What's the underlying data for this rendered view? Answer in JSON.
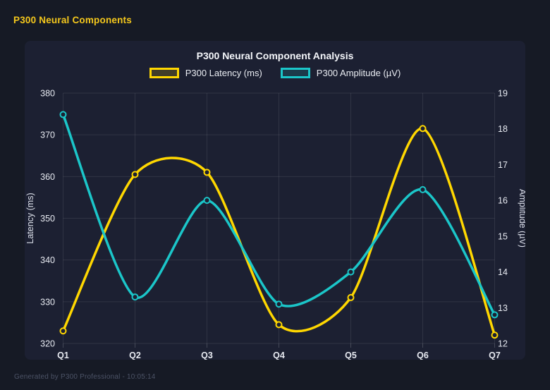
{
  "page": {
    "header_title": "P300 Neural Components",
    "footer": "Generated by P300 Professional - 10:05:14"
  },
  "colors": {
    "page_bg": "#161a25",
    "card_bg": "#1c2032",
    "grid": "rgba(255,255,255,0.09)",
    "tick_mark": "rgba(255,255,255,0.18)",
    "tick_text": "#e7eaf1",
    "axis_title_text": "#dde1eb",
    "title_text": "#f4f6fa",
    "footer_text": "#4c5366",
    "latency_yellow": "#ffd700",
    "amplitude_teal": "#1bc6c9"
  },
  "chart_data": {
    "type": "line",
    "title": "P300 Neural Component Analysis",
    "categories": [
      "Q1",
      "Q2",
      "Q3",
      "Q4",
      "Q5",
      "Q6",
      "Q7"
    ],
    "series": [
      {
        "name": "P300 Latency (ms)",
        "axis": "left",
        "color": "#ffd700",
        "values": [
          323,
          360.5,
          361,
          324.5,
          331,
          371.5,
          322
        ]
      },
      {
        "name": "P300 Amplitude (µV)",
        "axis": "right",
        "color": "#1bc6c9",
        "values": [
          18.4,
          13.3,
          16.0,
          13.1,
          14.0,
          16.3,
          12.8
        ]
      }
    ],
    "left_axis": {
      "label": "Latency (ms)",
      "min": 320,
      "max": 380,
      "step": 10
    },
    "right_axis": {
      "label": "Amplitude (µV)",
      "min": 12,
      "max": 19,
      "step": 1
    },
    "legend_position": "top",
    "grid": true,
    "line_tension": 0.4
  }
}
